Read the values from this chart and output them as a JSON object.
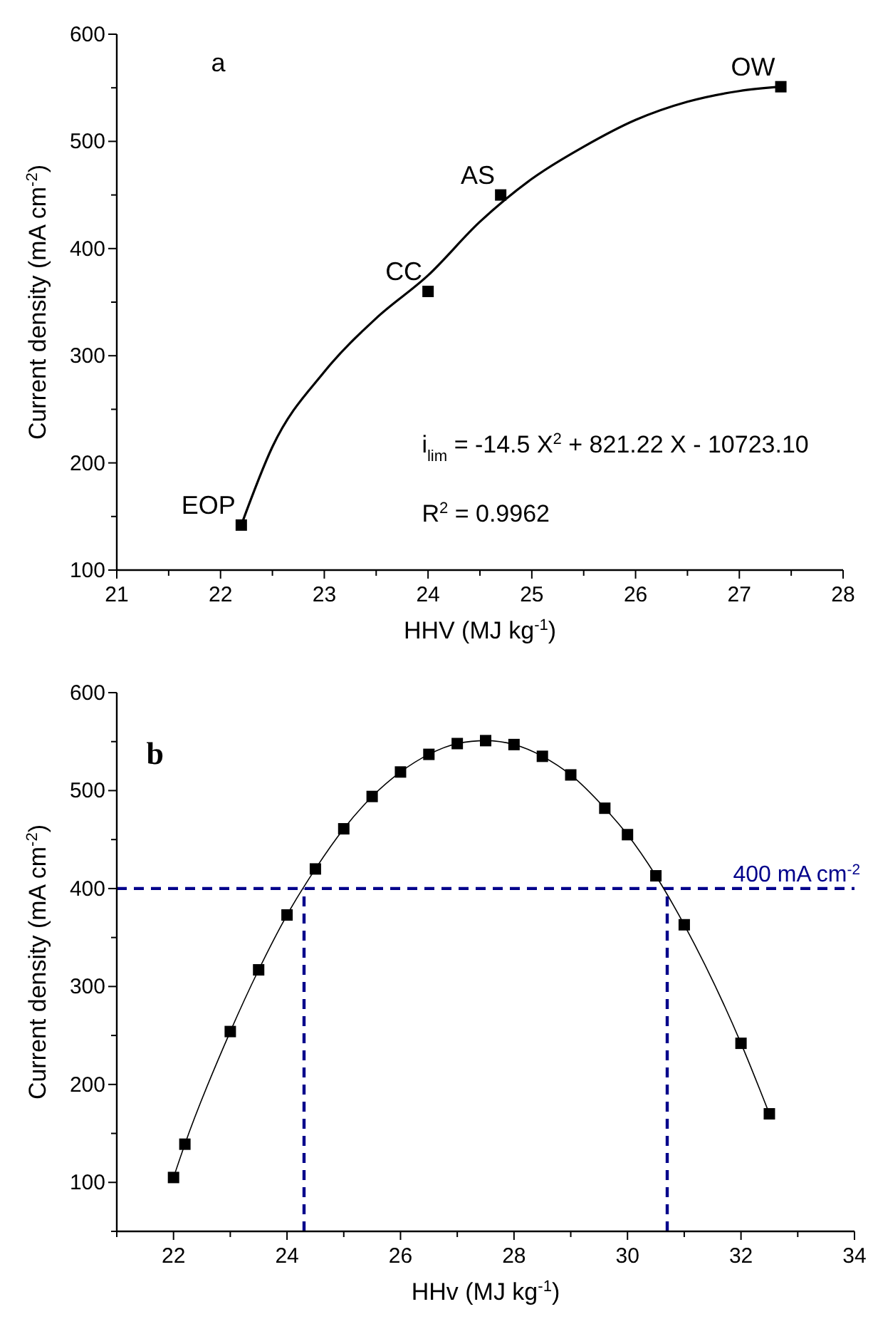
{
  "chart_data": [
    {
      "type": "scatter",
      "title": "a",
      "xlabel": "HHV (MJ kg$^{-1}$)",
      "ylabel": "Current density (mA cm$^{-2}$)",
      "xlim": [
        21,
        28
      ],
      "ylim": [
        100,
        600
      ],
      "xticks": [
        21,
        {
          "value": 21.5,
          "label": null
        },
        22,
        {
          "value": 22.5,
          "label": null
        },
        23,
        {
          "value": 23.5,
          "label": null
        },
        24,
        {
          "value": 24.5,
          "label": null
        },
        25,
        {
          "value": 25.5,
          "label": null
        },
        26,
        {
          "value": 26.5,
          "label": null
        },
        27,
        {
          "value": 27.5,
          "label": null
        },
        28
      ],
      "yticks": [
        100,
        {
          "value": 150,
          "label": null
        },
        200,
        {
          "value": 250,
          "label": null
        },
        300,
        {
          "value": 350,
          "label": null
        },
        400,
        {
          "value": 450,
          "label": null
        },
        500,
        {
          "value": 550,
          "label": null
        },
        600
      ],
      "grid": false,
      "series": [
        {
          "marker": "square",
          "color": "#000000",
          "x": [
            22.2,
            24,
            24.7,
            27.4
          ],
          "values": [
            142,
            360,
            450,
            551
          ]
        },
        {
          "type": "line",
          "marker": "none",
          "line_style": "solid",
          "color": "#000000",
          "x": [
            22.2,
            22.5,
            23,
            23.5,
            24,
            24.5,
            25,
            25.5,
            26,
            26.5,
            27,
            27.4
          ],
          "values": [
            142,
            215,
            285,
            335,
            375,
            425,
            465,
            495,
            520,
            537,
            547,
            551
          ]
        }
      ],
      "annotations": [
        {
          "text": "EOP",
          "x": 22.2,
          "y": 142
        },
        {
          "text": "CC",
          "x": 24,
          "y": 360
        },
        {
          "text": "AS",
          "x": 24.7,
          "y": 450
        },
        {
          "text": "OW",
          "x": 27.4,
          "y": 551
        },
        "i$_{lim}$ = -14.5 X$^{2}$ + 821.22 X - 10723.10",
        "R$^{2}$ = 0.9962"
      ]
    },
    {
      "type": "line",
      "title": "b",
      "xlabel": "HHv (MJ kg$^{-1}$)",
      "ylabel": "Current density (mA cm$^{-2}$)",
      "xlim": [
        21,
        34
      ],
      "ylim": [
        50,
        600
      ],
      "xticks": [
        {
          "value": 21,
          "label": null
        },
        22,
        {
          "value": 23,
          "label": null
        },
        24,
        {
          "value": 25,
          "label": null
        },
        26,
        {
          "value": 27,
          "label": null
        },
        28,
        {
          "value": 29,
          "label": null
        },
        30,
        {
          "value": 31,
          "label": null
        },
        32,
        {
          "value": 33,
          "label": null
        },
        34
      ],
      "yticks": [
        {
          "value": 50,
          "label": null
        },
        100,
        {
          "value": 150,
          "label": null
        },
        200,
        {
          "value": 250,
          "label": null
        },
        300,
        {
          "value": 350,
          "label": null
        },
        400,
        {
          "value": 450,
          "label": null
        },
        500,
        {
          "value": 550,
          "label": null
        },
        600
      ],
      "grid": false,
      "series": [
        {
          "marker": "square",
          "line_style": "solid",
          "color": "#000000",
          "x": [
            22,
            22.2,
            23,
            23.5,
            24,
            24.5,
            25,
            25.5,
            26,
            26.5,
            27,
            27.5,
            28,
            28.5,
            29,
            29.6,
            30,
            30.5,
            31,
            32,
            32.5
          ],
          "values": [
            105,
            139,
            254,
            317,
            373,
            420,
            461,
            494,
            519,
            537,
            548,
            551,
            547,
            535,
            516,
            482,
            455,
            413,
            363,
            242,
            170
          ]
        },
        {
          "type": "line",
          "marker": "none",
          "line_style": "dashed",
          "color": "#00008b",
          "x": [
            24.3,
            24.3
          ],
          "values": [
            50,
            400
          ]
        },
        {
          "type": "line",
          "marker": "none",
          "line_style": "dashed",
          "color": "#00008b",
          "x": [
            30.7,
            30.7
          ],
          "values": [
            50,
            400
          ]
        }
      ],
      "ref_lines": [
        {
          "axis": "y",
          "value": 400,
          "label": "400 mA cm$^{-2}$",
          "color": "#00008b",
          "line_style": "dashed"
        }
      ]
    }
  ]
}
